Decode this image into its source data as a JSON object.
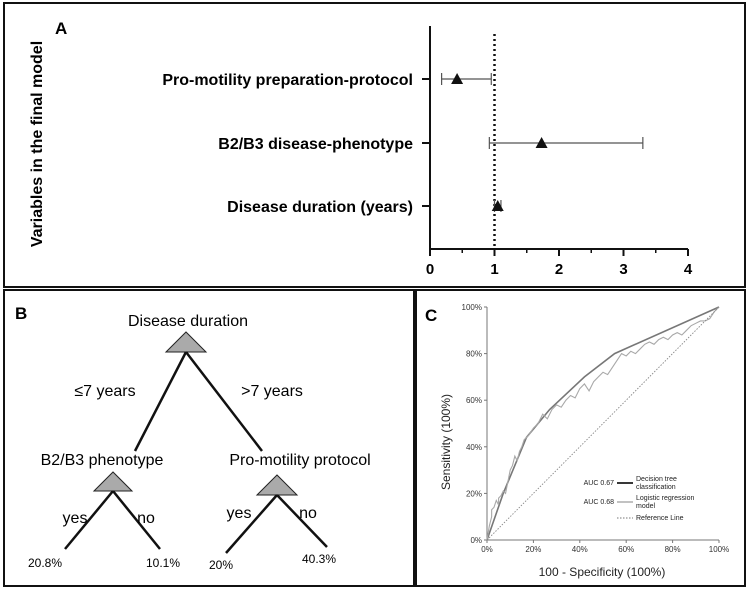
{
  "chart_data": [
    {
      "panel": "A",
      "type": "forest",
      "ylabel": "Variables in the final model",
      "xlim": [
        0,
        4
      ],
      "x_ticks": [
        "0",
        "1",
        "2",
        "3",
        "4"
      ],
      "reference_x": 1,
      "rows": [
        {
          "label": "Pro-motility preparation-protocol",
          "estimate": 0.42,
          "lower": 0.18,
          "upper": 0.95
        },
        {
          "label": "B2/B3 disease-phenotype",
          "estimate": 1.73,
          "lower": 0.92,
          "upper": 3.3
        },
        {
          "label": "Disease duration (years)",
          "estimate": 1.05,
          "lower": 1.0,
          "upper": 1.1
        }
      ]
    },
    {
      "panel": "B",
      "type": "decision-tree",
      "root": "Disease duration",
      "left_branch": "≤7 years",
      "right_branch": ">7 years",
      "left_node": "B2/B3 phenotype",
      "right_node": "Pro-motility protocol",
      "left_yes": "yes",
      "left_no": "no",
      "right_yes": "yes",
      "right_no": "no",
      "leaves": [
        "20.8%",
        "10.1%",
        "20%",
        "40.3%"
      ]
    },
    {
      "panel": "C",
      "type": "line",
      "xlabel": "100 - Specificity (100%)",
      "ylabel": "Sensitivity (100%)",
      "xlim": [
        0,
        100
      ],
      "ylim": [
        0,
        100
      ],
      "x_ticks": [
        "0%",
        "20%",
        "40%",
        "60%",
        "80%",
        "100%"
      ],
      "y_ticks": [
        "0%",
        "20%",
        "40%",
        "60%",
        "80%",
        "100%"
      ],
      "series": [
        {
          "name": "Decision tree classification",
          "auc": "AUC 0.67",
          "color": "#777777",
          "x": [
            0,
            7,
            17,
            27,
            42,
            55,
            100
          ],
          "y": [
            0,
            20,
            44,
            56,
            70,
            80,
            100
          ]
        },
        {
          "name": "Logistic regression model",
          "auc": "AUC 0.68",
          "color": "#a8a8a8",
          "x": [
            0,
            1,
            2,
            2,
            3,
            4,
            5,
            5,
            6,
            7,
            8,
            9,
            10,
            11,
            12,
            13,
            14,
            15,
            16,
            18,
            20,
            22,
            24,
            26,
            28,
            30,
            32,
            34,
            36,
            38,
            40,
            42,
            44,
            46,
            48,
            50,
            52,
            54,
            56,
            58,
            60,
            62,
            64,
            66,
            68,
            70,
            72,
            74,
            76,
            78,
            80,
            82,
            84,
            86,
            88,
            90,
            92,
            94,
            96,
            98,
            100
          ],
          "y": [
            0,
            6,
            10,
            13,
            14,
            17,
            15,
            18,
            19,
            21,
            20,
            25,
            30,
            32,
            36,
            34,
            38,
            40,
            43,
            45,
            48,
            50,
            54,
            52,
            56,
            58,
            57,
            60,
            62,
            61,
            65,
            67,
            64,
            68,
            70,
            72,
            71,
            74,
            77,
            80,
            79,
            81,
            80,
            82,
            84,
            85,
            84,
            86,
            87,
            86,
            88,
            89,
            88,
            90,
            92,
            93,
            94,
            94,
            95,
            98,
            100
          ]
        },
        {
          "name": "Reference Line",
          "color": "#888888",
          "style": "dotted",
          "x": [
            0,
            100
          ],
          "y": [
            0,
            100
          ]
        }
      ],
      "legend_position": "bottom-right"
    }
  ]
}
